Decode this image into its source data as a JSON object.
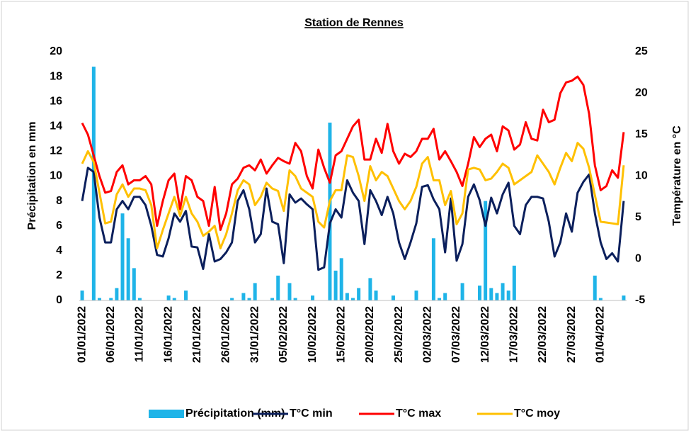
{
  "chart_data": {
    "type": "bar-line",
    "title": "Station de Rennes",
    "y_label": "Précipitation en mm",
    "y2_label": "Température en °C",
    "categories": [
      "01/01/2022",
      null,
      null,
      null,
      null,
      "06/01/2022",
      null,
      null,
      null,
      null,
      "11/01/2022",
      null,
      null,
      null,
      null,
      "16/01/2022",
      null,
      null,
      null,
      null,
      "21/01/2022",
      null,
      null,
      null,
      null,
      "26/01/2022",
      null,
      null,
      null,
      null,
      "31/01/2022",
      null,
      null,
      null,
      null,
      "05/02/2022",
      null,
      null,
      null,
      null,
      "10/02/2022",
      null,
      null,
      null,
      null,
      "15/02/2022",
      null,
      null,
      null,
      null,
      "20/02/2022",
      null,
      null,
      null,
      null,
      "25/02/2022",
      null,
      null,
      null,
      null,
      "02/03/2022",
      null,
      null,
      null,
      null,
      "07/03/2022",
      null,
      null,
      null,
      null,
      "12/03/2022",
      null,
      null,
      null,
      null,
      "17/03/2022",
      null,
      null,
      null,
      null,
      "22/03/2022",
      null,
      null,
      null,
      null,
      "27/03/2022",
      null,
      null,
      null,
      null,
      "01/04/2022",
      null,
      null,
      null,
      null
    ],
    "series": [
      {
        "name": "Précipitation (mm)",
        "color": "#1fb4e8",
        "type": "bar",
        "values": [
          0.8,
          0,
          18.8,
          0.2,
          0,
          0.2,
          1.0,
          7.0,
          5.0,
          2.6,
          0.2,
          0,
          0,
          0,
          0,
          0.4,
          0.2,
          0,
          0.8,
          0,
          0,
          0,
          0,
          0,
          0,
          0,
          0.2,
          0,
          0.6,
          0.2,
          1.4,
          0,
          0,
          0.2,
          2.0,
          0,
          1.4,
          0.2,
          0,
          0,
          0.4,
          0,
          0,
          14.3,
          2.4,
          3.4,
          0.6,
          0.2,
          1.0,
          0,
          1.8,
          0.8,
          0,
          0,
          0.4,
          0,
          0,
          0,
          0.8,
          0,
          0,
          5.0,
          0.2,
          0.6,
          0,
          0,
          1.4,
          0,
          0,
          1.2,
          8.0,
          1.0,
          0.6,
          1.4,
          0.8,
          2.8,
          0,
          0,
          0,
          0,
          0,
          0,
          0,
          0,
          0,
          0,
          0,
          0,
          0,
          2.0,
          0.2,
          0,
          0,
          0,
          0.4
        ]
      },
      {
        "name": "T°C min",
        "color": "#0b1f5c",
        "type": "line",
        "axis": "y2",
        "values": [
          7,
          11,
          10.5,
          5,
          2,
          2,
          6,
          7,
          6,
          7.5,
          7.5,
          6.5,
          4,
          0.5,
          0.3,
          2.5,
          5.5,
          4.5,
          5.8,
          1.5,
          1.4,
          -1.2,
          3,
          -0.3,
          0,
          0.8,
          2,
          7,
          8.3,
          6,
          2,
          3,
          8.5,
          4.5,
          4.2,
          -0.5,
          7.8,
          6.8,
          7.3,
          6.6,
          6,
          -1.3,
          -1,
          4.3,
          6,
          5,
          9.5,
          8,
          7,
          1.8,
          8.3,
          7,
          5.3,
          7.5,
          5.5,
          2,
          0,
          2,
          4.3,
          8.7,
          8.9,
          7.2,
          6,
          0.8,
          7.3,
          -0.2,
          1.8,
          7.5,
          9,
          7.1,
          4,
          7.4,
          5.5,
          7.8,
          9.2,
          4,
          3,
          6.5,
          7.5,
          7.5,
          7.3,
          4.5,
          0.3,
          2,
          5.5,
          3.3,
          8,
          9.3,
          10.2,
          5.5,
          2,
          0,
          0.7,
          -0.3,
          7
        ]
      },
      {
        "name": "T°C max",
        "color": "#ff0000",
        "type": "line",
        "axis": "y2",
        "values": [
          16.4,
          15,
          12.5,
          10,
          8,
          8.2,
          10.5,
          11.3,
          9,
          9.5,
          9.5,
          10,
          9,
          4,
          7,
          9.5,
          10.3,
          6,
          10,
          9.5,
          7.5,
          7,
          4,
          8.7,
          3.5,
          5.5,
          9,
          9.7,
          11,
          11.3,
          10.7,
          12,
          10.3,
          11.3,
          12.2,
          11.8,
          11.5,
          14,
          13,
          10,
          8.5,
          13.2,
          11,
          9.2,
          12.5,
          13,
          14.5,
          16,
          16.8,
          12,
          12,
          14.5,
          12.8,
          16.3,
          13,
          11.5,
          12.7,
          12.3,
          13,
          14.5,
          14.5,
          15.7,
          12,
          13,
          11.8,
          10.5,
          8.8,
          11.5,
          14.7,
          13.5,
          14.5,
          15,
          13,
          16,
          15.5,
          13.2,
          13.8,
          16.5,
          14.5,
          14.3,
          18,
          16.5,
          16.8,
          20,
          21.3,
          21.5,
          22,
          21,
          17.5,
          11.3,
          8.3,
          8.8,
          10.7,
          9.8,
          15.3
        ]
      },
      {
        "name": "T°C moy",
        "color": "#ffc000",
        "type": "line",
        "axis": "y2",
        "values": [
          11.5,
          13,
          11.7,
          8,
          4.3,
          4.5,
          7.8,
          9,
          7.5,
          8.5,
          8.5,
          8.3,
          6.5,
          1.3,
          3.5,
          5.5,
          7.5,
          5.2,
          7.5,
          5.5,
          4.5,
          2.8,
          3.3,
          4,
          1.3,
          3,
          5.5,
          8.3,
          9.5,
          9,
          6.5,
          7.5,
          9.2,
          8.5,
          8.2,
          5.8,
          10.7,
          10,
          8.5,
          8,
          7.5,
          4.5,
          3.8,
          7,
          8.3,
          8.3,
          12.5,
          12.3,
          10,
          7,
          11.2,
          9.5,
          10.5,
          10,
          8.5,
          7,
          6,
          7,
          8.7,
          11.5,
          12.3,
          9.5,
          9.5,
          6.5,
          8.2,
          4.2,
          5.5,
          10.8,
          11,
          10.8,
          9.5,
          9.7,
          10.5,
          11.5,
          11,
          9,
          9.5,
          10,
          10.5,
          12.5,
          11.5,
          10.5,
          9,
          11,
          12.8,
          11.8,
          14,
          13.3,
          11,
          7.7,
          4.5,
          4.4,
          4.3,
          4.2,
          11.3
        ]
      }
    ],
    "ylim": [
      0,
      20
    ],
    "yticks": [
      0,
      2,
      4,
      6,
      8,
      10,
      12,
      14,
      16,
      18,
      20
    ],
    "y2lim": [
      -5,
      25
    ],
    "y2ticks": [
      -5,
      0,
      5,
      10,
      15,
      20,
      25
    ],
    "legend": "bottom",
    "grid": false
  }
}
